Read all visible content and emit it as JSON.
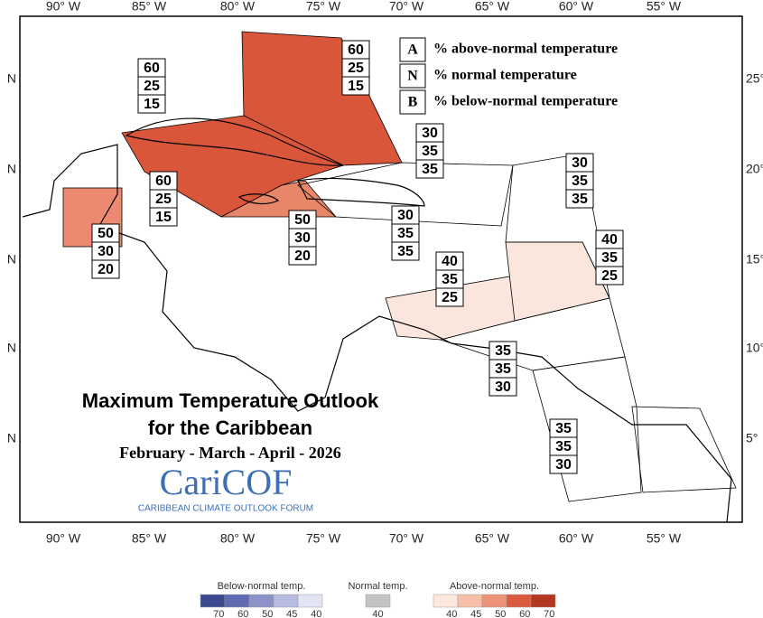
{
  "map": {
    "lon_labels": [
      "90° W",
      "85° W",
      "80° W",
      "75° W",
      "70° W",
      "65° W",
      "60° W",
      "55° W"
    ],
    "lat_labels_left": [
      "N",
      "N",
      "N",
      "N",
      "N"
    ],
    "lat_labels_right": [
      "25°",
      "20°",
      "15°",
      "10°",
      "5°"
    ]
  },
  "key": [
    {
      "letter": "A",
      "text": "% above-normal temperature"
    },
    {
      "letter": "N",
      "text": "% normal temperature"
    },
    {
      "letter": "B",
      "text": "% below-normal temperature"
    }
  ],
  "regions": [
    {
      "values": [
        60,
        25,
        15
      ]
    },
    {
      "values": [
        60,
        25,
        15
      ]
    },
    {
      "values": [
        60,
        25,
        15
      ]
    },
    {
      "values": [
        50,
        30,
        20
      ]
    },
    {
      "values": [
        50,
        30,
        20
      ]
    },
    {
      "values": [
        30,
        35,
        35
      ]
    },
    {
      "values": [
        30,
        35,
        35
      ]
    },
    {
      "values": [
        30,
        35,
        35
      ]
    },
    {
      "values": [
        40,
        35,
        25
      ]
    },
    {
      "values": [
        40,
        35,
        25
      ]
    },
    {
      "values": [
        35,
        35,
        30
      ]
    },
    {
      "values": [
        35,
        35,
        30
      ]
    }
  ],
  "title": [
    "Maximum Temperature Outlook",
    "for the Caribbean"
  ],
  "subtitle": "February - March - April - 2026",
  "logo": {
    "name": "CariCOF",
    "tagline": "CARIBBEAN CLIMATE OUTLOOK FORUM"
  },
  "colorbar": [
    {
      "label": "Below-normal temp.",
      "ticks": [
        70,
        60,
        50,
        45,
        40
      ],
      "colors": [
        "#3b4a8f",
        "#5e6bb0",
        "#8c93c9",
        "#b7bce0",
        "#e3e5f4"
      ]
    },
    {
      "label": "Normal temp.",
      "ticks": [
        40
      ],
      "colors": [
        "#c4c4c4"
      ]
    },
    {
      "label": "Above-normal temp.",
      "ticks": [
        40,
        45,
        50,
        60,
        70
      ],
      "colors": [
        "#fde7dd",
        "#f7bfa8",
        "#ee9378",
        "#db5a3e",
        "#b3361f"
      ]
    }
  ]
}
